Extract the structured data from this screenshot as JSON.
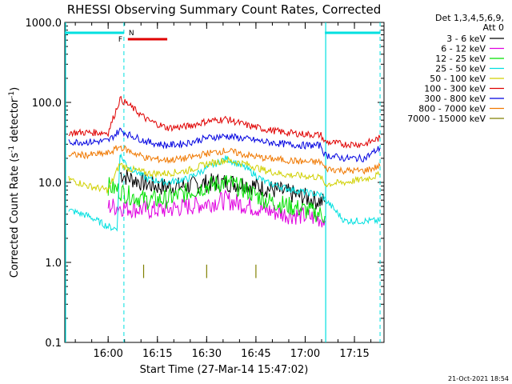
{
  "chart_data": {
    "type": "line",
    "title": "RHESSI Observing Summary Count Rates, Corrected",
    "xlabel": "Start Time (27-Mar-14 15:47:02)",
    "ylabel_main": "Corrected Count Rate (s",
    "ylabel_sup1": "-1",
    "ylabel_mid": " detector",
    "ylabel_sup2": "-1",
    "ylabel_end": ")",
    "yscale": "log",
    "ylim": [
      0.1,
      1000
    ],
    "xlim_minutes": [
      15.78,
      17.4
    ],
    "yticks": [
      "1000.0",
      "100.0",
      "10.0",
      "1.0",
      "0.1"
    ],
    "xticks": [
      "16:00",
      "16:15",
      "16:30",
      "16:45",
      "17:00",
      "17:15"
    ],
    "legend_header": [
      "Det 1,3,4,5,6,9,",
      "Att 0"
    ],
    "legend_position": "top-right",
    "timestamp": "21-Oct-2021 18:54",
    "flag_labels": {
      "N": "N",
      "F": "F"
    },
    "series": [
      {
        "name": "3 - 6 keV",
        "color": "#000000",
        "points": [
          [
            16.06,
            13
          ],
          [
            16.1,
            11.5
          ],
          [
            16.15,
            10.5
          ],
          [
            16.2,
            9.5
          ],
          [
            16.25,
            9
          ],
          [
            16.3,
            8.8
          ],
          [
            16.4,
            9
          ],
          [
            16.5,
            9.8
          ],
          [
            16.6,
            10
          ],
          [
            16.7,
            9.5
          ],
          [
            16.8,
            8.5
          ],
          [
            16.9,
            7.5
          ],
          [
            17.0,
            6.5
          ],
          [
            17.05,
            6
          ],
          [
            17.08,
            5.8
          ],
          [
            17.1,
            5.7
          ]
        ]
      },
      {
        "name": "6 - 12 keV",
        "color": "#e000e0",
        "points": [
          [
            16.0,
            5
          ],
          [
            16.05,
            5
          ],
          [
            16.1,
            4.8
          ],
          [
            16.2,
            4.5
          ],
          [
            16.3,
            4.6
          ],
          [
            16.4,
            5
          ],
          [
            16.5,
            5.5
          ],
          [
            16.6,
            6
          ],
          [
            16.7,
            5.2
          ],
          [
            16.8,
            4.5
          ],
          [
            16.9,
            4
          ],
          [
            17.0,
            3.8
          ],
          [
            17.08,
            3.5
          ],
          [
            17.1,
            3.3
          ]
        ]
      },
      {
        "name": "12 - 25 keV",
        "color": "#00e000",
        "points": [
          [
            16.0,
            9
          ],
          [
            16.05,
            8
          ],
          [
            16.1,
            7
          ],
          [
            16.2,
            6
          ],
          [
            16.3,
            6.2
          ],
          [
            16.4,
            7.5
          ],
          [
            16.5,
            9
          ],
          [
            16.6,
            10
          ],
          [
            16.7,
            8
          ],
          [
            16.8,
            6
          ],
          [
            16.9,
            5.2
          ],
          [
            17.0,
            4.5
          ],
          [
            17.08,
            4
          ],
          [
            17.1,
            3.8
          ]
        ]
      },
      {
        "name": "25 - 50 keV",
        "color": "#00e0e0",
        "points": [
          [
            15.8,
            4.5
          ],
          [
            15.9,
            3.8
          ],
          [
            16.0,
            2.8
          ],
          [
            16.05,
            2.6
          ],
          [
            16.06,
            22
          ],
          [
            16.1,
            16
          ],
          [
            16.2,
            11
          ],
          [
            16.3,
            10
          ],
          [
            16.4,
            11
          ],
          [
            16.5,
            15
          ],
          [
            16.6,
            20
          ],
          [
            16.7,
            15
          ],
          [
            16.8,
            10
          ],
          [
            16.9,
            8.5
          ],
          [
            17.0,
            7.5
          ],
          [
            17.08,
            7
          ],
          [
            17.2,
            3.3
          ],
          [
            17.3,
            3.3
          ],
          [
            17.38,
            3.3
          ]
        ]
      },
      {
        "name": "50 - 100 keV",
        "color": "#d0d000",
        "points": [
          [
            15.8,
            11
          ],
          [
            15.9,
            9
          ],
          [
            16.0,
            8
          ],
          [
            16.06,
            17
          ],
          [
            16.1,
            15
          ],
          [
            16.2,
            13
          ],
          [
            16.3,
            13
          ],
          [
            16.4,
            14
          ],
          [
            16.5,
            17
          ],
          [
            16.6,
            19
          ],
          [
            16.7,
            17
          ],
          [
            16.8,
            14
          ],
          [
            16.9,
            12.5
          ],
          [
            17.0,
            12
          ],
          [
            17.08,
            11.5
          ],
          [
            17.1,
            9.5
          ],
          [
            17.2,
            10
          ],
          [
            17.3,
            11
          ],
          [
            17.38,
            12.5
          ]
        ]
      },
      {
        "name": "100 - 300 keV",
        "color": "#e00000",
        "points": [
          [
            15.8,
            42
          ],
          [
            15.9,
            42
          ],
          [
            16.0,
            42
          ],
          [
            16.06,
            110
          ],
          [
            16.1,
            95
          ],
          [
            16.2,
            60
          ],
          [
            16.3,
            48
          ],
          [
            16.4,
            50
          ],
          [
            16.5,
            58
          ],
          [
            16.6,
            62
          ],
          [
            16.7,
            52
          ],
          [
            16.8,
            46
          ],
          [
            16.9,
            42
          ],
          [
            17.0,
            40
          ],
          [
            17.08,
            39
          ],
          [
            17.1,
            32
          ],
          [
            17.2,
            30
          ],
          [
            17.3,
            30
          ],
          [
            17.38,
            36
          ]
        ]
      },
      {
        "name": "300 - 800 keV",
        "color": "#0000e0",
        "points": [
          [
            15.8,
            32
          ],
          [
            15.9,
            32
          ],
          [
            16.0,
            33
          ],
          [
            16.06,
            45
          ],
          [
            16.1,
            40
          ],
          [
            16.2,
            32
          ],
          [
            16.3,
            29
          ],
          [
            16.4,
            31
          ],
          [
            16.5,
            36
          ],
          [
            16.6,
            38
          ],
          [
            16.7,
            35
          ],
          [
            16.8,
            32
          ],
          [
            16.9,
            30
          ],
          [
            17.0,
            29
          ],
          [
            17.08,
            29
          ],
          [
            17.1,
            22
          ],
          [
            17.2,
            20
          ],
          [
            17.3,
            20
          ],
          [
            17.38,
            27
          ]
        ]
      },
      {
        "name": "800 - 7000 keV",
        "color": "#f07800",
        "points": [
          [
            15.8,
            22
          ],
          [
            15.9,
            22
          ],
          [
            16.0,
            23
          ],
          [
            16.06,
            28
          ],
          [
            16.1,
            25
          ],
          [
            16.2,
            20
          ],
          [
            16.3,
            19
          ],
          [
            16.4,
            20
          ],
          [
            16.5,
            23
          ],
          [
            16.6,
            25
          ],
          [
            16.7,
            22
          ],
          [
            16.8,
            20
          ],
          [
            16.9,
            19
          ],
          [
            17.0,
            18
          ],
          [
            17.08,
            18
          ],
          [
            17.1,
            15
          ],
          [
            17.2,
            14
          ],
          [
            17.3,
            14
          ],
          [
            17.38,
            16
          ]
        ]
      },
      {
        "name": "7000 - 15000 keV",
        "color": "#808000",
        "points": [
          [
            16.18,
            0.75
          ],
          [
            16.5,
            0.75
          ],
          [
            16.75,
            0.75
          ]
        ]
      }
    ],
    "flags": [
      {
        "name": "N",
        "color": "#00e0e0",
        "segments": [
          [
            15.78,
            16.08
          ],
          [
            17.1,
            17.38
          ]
        ]
      },
      {
        "name": "F",
        "color": "#e00000",
        "segments": [
          [
            16.1,
            16.3
          ]
        ]
      }
    ],
    "vertical_markers_dashed": [
      16.08,
      17.38
    ],
    "vertical_markers_solid": [
      15.78,
      17.1
    ]
  }
}
